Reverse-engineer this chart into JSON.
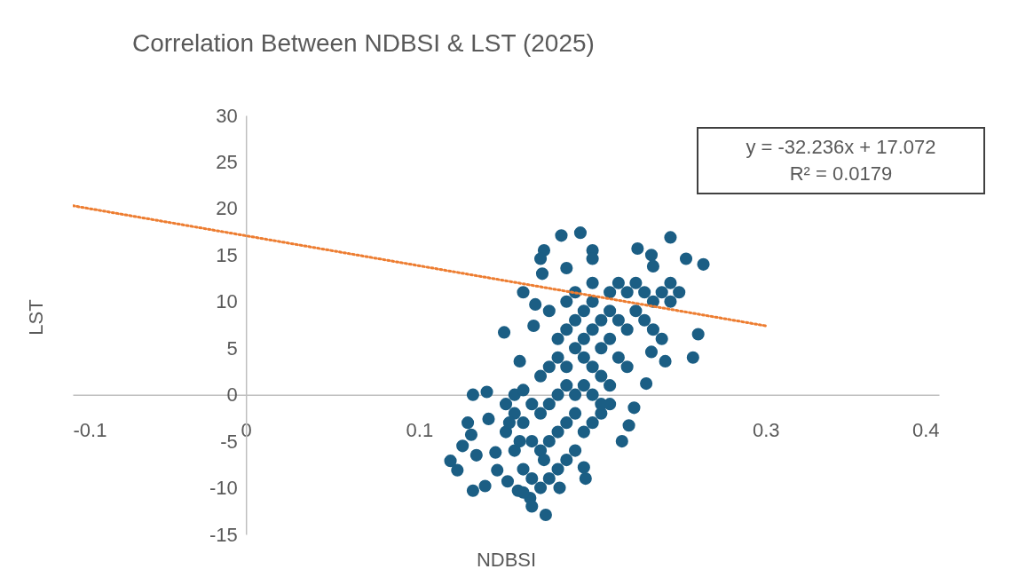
{
  "chart_data": {
    "type": "scatter",
    "title": "Correlation Between NDBSI & LST (2025)",
    "xlabel": "NDBSI",
    "ylabel": "LST",
    "xlim": [
      -0.1,
      0.4
    ],
    "ylim": [
      -15,
      30
    ],
    "xticks": [
      -0.1,
      0,
      0.1,
      0.3,
      0.4
    ],
    "yticks": [
      -15,
      -10,
      -5,
      0,
      5,
      10,
      15,
      20,
      25,
      30
    ],
    "annotations": [
      "y = -32.236x + 17.072",
      "R² = 0.0179"
    ],
    "series": [
      {
        "color": "#1b5e84",
        "marker": "circle",
        "x": [
          0.182,
          0.193,
          0.172,
          0.17,
          0.2,
          0.2,
          0.226,
          0.234,
          0.235,
          0.245,
          0.254,
          0.264,
          0.171,
          0.185,
          0.16,
          0.167,
          0.149,
          0.261,
          0.258,
          0.234,
          0.242,
          0.158,
          0.166,
          0.231,
          0.131,
          0.139,
          0.14,
          0.128,
          0.13,
          0.125,
          0.133,
          0.118,
          0.122,
          0.131,
          0.138,
          0.144,
          0.145,
          0.151,
          0.157,
          0.164,
          0.173,
          0.181,
          0.196,
          0.195,
          0.217,
          0.221,
          0.224,
          0.15,
          0.155,
          0.16,
          0.165,
          0.17,
          0.175,
          0.18,
          0.185,
          0.19,
          0.15,
          0.155,
          0.16,
          0.165,
          0.17,
          0.175,
          0.18,
          0.185,
          0.19,
          0.195,
          0.2,
          0.205,
          0.155,
          0.16,
          0.165,
          0.17,
          0.175,
          0.18,
          0.185,
          0.19,
          0.195,
          0.2,
          0.205,
          0.21,
          0.17,
          0.175,
          0.18,
          0.185,
          0.19,
          0.195,
          0.2,
          0.205,
          0.21,
          0.18,
          0.185,
          0.19,
          0.195,
          0.2,
          0.205,
          0.21,
          0.215,
          0.22,
          0.175,
          0.185,
          0.19,
          0.195,
          0.2,
          0.205,
          0.21,
          0.215,
          0.22,
          0.225,
          0.23,
          0.235,
          0.24,
          0.2,
          0.21,
          0.215,
          0.22,
          0.225,
          0.23,
          0.235,
          0.24,
          0.245,
          0.25,
          0.245,
          0.165,
          0.16,
          0.172,
          0.158,
          0.152
        ],
        "values": [
          17.1,
          17.4,
          15.5,
          14.6,
          15.5,
          14.6,
          15.7,
          15,
          13.8,
          16.9,
          14.6,
          14,
          13,
          13.6,
          11,
          9.7,
          6.7,
          6.5,
          4,
          4.6,
          3.6,
          3.6,
          7.4,
          1.2,
          0,
          0.3,
          -2.6,
          -3,
          -4.3,
          -5.5,
          -6.5,
          -7.1,
          -8.1,
          -10.3,
          -9.8,
          -6.2,
          -8.1,
          -9.3,
          -10.3,
          -11.1,
          -12.9,
          -10,
          -9,
          -7.8,
          -5,
          -3.3,
          -1.4,
          -4,
          -6,
          -8,
          -9,
          -10,
          -9,
          -8,
          -7,
          -6,
          -1,
          -2,
          -3,
          -5,
          -6,
          -5,
          -4,
          -3,
          -2,
          -4,
          -3,
          -2,
          0,
          0.5,
          -1,
          -2,
          -1,
          0,
          1,
          0,
          1,
          0,
          -1,
          -1,
          2,
          3,
          4,
          3,
          5,
          4,
          3,
          2,
          1,
          6,
          7,
          8,
          6,
          7,
          5,
          6,
          4,
          3,
          9,
          10,
          11,
          9,
          10,
          8,
          9,
          8,
          7,
          9,
          8,
          7,
          6,
          12,
          11,
          12,
          11,
          12,
          11,
          10,
          11,
          10,
          11,
          12,
          -12,
          -10.5,
          -7,
          -5,
          -3
        ]
      },
      {
        "type": "line",
        "color": "#ed7d31",
        "marker": "none",
        "line_style": "dotted",
        "x": [
          -0.1,
          0.3
        ],
        "values": [
          20.3,
          7.4
        ]
      }
    ]
  }
}
